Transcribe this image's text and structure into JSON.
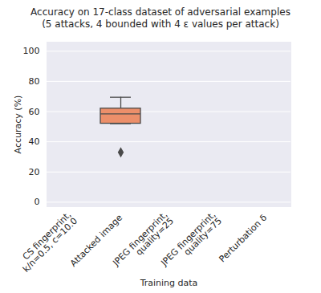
{
  "chart_data": {
    "type": "box",
    "title": "Accuracy on 17-class dataset of adversarial examples\n(5 attacks, 4 bounded with 4 ε values per attack)",
    "x_label": "Training data",
    "y_label": "Accuracy (%)",
    "categories": [
      "CS fingerprint,\nk/n=0.5, c=10.0",
      "Attacked image",
      "JPEG fingerprint,\nquality=25",
      "JPEG fingerprint,\nquality=75",
      "Perturbation δ"
    ],
    "boxes": [
      null,
      {
        "whisker_low": 52,
        "q1": 52,
        "median": 58.5,
        "q3": 62,
        "whisker_high": 69.5,
        "outliers": [
          33
        ]
      },
      null,
      null,
      null
    ],
    "color": "#ec8f6a",
    "marker": "diamond",
    "ylim": [
      -3,
      106
    ],
    "yticks": [
      0,
      20,
      40,
      60,
      80,
      100
    ],
    "grid": true
  }
}
